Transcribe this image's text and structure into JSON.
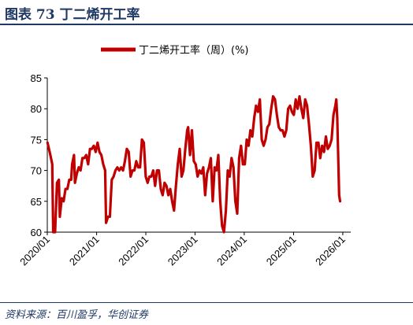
{
  "figure": {
    "title": "图表 73  丁二烯开工率",
    "source": "资料来源：百川盈孚，华创证券"
  },
  "colors": {
    "series": "#c00000",
    "frame": "#1f3864"
  },
  "chart_data": {
    "type": "line",
    "title": "",
    "xlabel": "",
    "ylabel": "",
    "ylim": [
      60,
      85
    ],
    "yticks": [
      60,
      65,
      70,
      75,
      80,
      85
    ],
    "xticks": [
      "2020/01",
      "2021/01",
      "2022/01",
      "2023/01",
      "2024/01",
      "2025/01",
      "2026/01"
    ],
    "xrange": [
      "2020/01",
      "2026/03"
    ],
    "grid": false,
    "legend": "top-center",
    "series": [
      {
        "name": "丁二烯开工率（周）(%)",
        "points": [
          [
            "2020-01-03",
            74.5
          ],
          [
            "2020-01-24",
            72.5
          ],
          [
            "2020-02-07",
            71.0
          ],
          [
            "2020-02-14",
            60.0
          ],
          [
            "2020-02-28",
            60.0
          ],
          [
            "2020-03-13",
            68.0
          ],
          [
            "2020-03-27",
            68.5
          ],
          [
            "2020-04-03",
            62.5
          ],
          [
            "2020-04-17",
            65.5
          ],
          [
            "2020-05-01",
            65.0
          ],
          [
            "2020-05-15",
            67.0
          ],
          [
            "2020-05-29",
            67.0
          ],
          [
            "2020-06-12",
            68.5
          ],
          [
            "2020-06-26",
            68.5
          ],
          [
            "2020-07-03",
            71.0
          ],
          [
            "2020-07-17",
            72.5
          ],
          [
            "2020-07-24",
            68.0
          ],
          [
            "2020-08-07",
            69.5
          ],
          [
            "2020-08-21",
            70.5
          ],
          [
            "2020-09-04",
            70.0
          ],
          [
            "2020-09-18",
            72.0
          ],
          [
            "2020-10-02",
            72.0
          ],
          [
            "2020-10-16",
            72.5
          ],
          [
            "2020-10-30",
            71.0
          ],
          [
            "2020-11-13",
            73.5
          ],
          [
            "2020-11-27",
            73.5
          ],
          [
            "2020-12-11",
            74.0
          ],
          [
            "2020-12-25",
            73.0
          ],
          [
            "2021-01-08",
            74.5
          ],
          [
            "2021-01-22",
            73.0
          ],
          [
            "2021-02-05",
            72.5
          ],
          [
            "2021-02-19",
            71.0
          ],
          [
            "2021-03-05",
            70.0
          ],
          [
            "2021-03-12",
            61.5
          ],
          [
            "2021-03-26",
            62.5
          ],
          [
            "2021-04-09",
            62.5
          ],
          [
            "2021-04-23",
            68.5
          ],
          [
            "2021-05-07",
            69.0
          ],
          [
            "2021-05-21",
            70.0
          ],
          [
            "2021-06-04",
            70.5
          ],
          [
            "2021-06-18",
            70.0
          ],
          [
            "2021-07-02",
            70.5
          ],
          [
            "2021-07-16",
            70.0
          ],
          [
            "2021-07-30",
            71.5
          ],
          [
            "2021-08-13",
            73.5
          ],
          [
            "2021-08-27",
            73.0
          ],
          [
            "2021-09-10",
            69.0
          ],
          [
            "2021-09-24",
            70.0
          ],
          [
            "2021-10-08",
            70.0
          ],
          [
            "2021-10-22",
            71.5
          ],
          [
            "2021-11-05",
            70.5
          ],
          [
            "2021-11-19",
            70.5
          ],
          [
            "2021-12-03",
            75.0
          ],
          [
            "2021-12-17",
            74.5
          ],
          [
            "2021-12-31",
            69.0
          ],
          [
            "2022-01-14",
            68.0
          ],
          [
            "2022-01-28",
            69.0
          ],
          [
            "2022-02-11",
            69.0
          ],
          [
            "2022-02-25",
            70.0
          ],
          [
            "2022-03-11",
            67.5
          ],
          [
            "2022-03-25",
            70.0
          ],
          [
            "2022-04-08",
            70.0
          ],
          [
            "2022-04-22",
            67.0
          ],
          [
            "2022-05-06",
            66.0
          ],
          [
            "2022-05-20",
            68.0
          ],
          [
            "2022-06-03",
            67.5
          ],
          [
            "2022-06-17",
            66.0
          ],
          [
            "2022-07-01",
            67.0
          ],
          [
            "2022-07-15",
            65.0
          ],
          [
            "2022-07-29",
            63.5
          ],
          [
            "2022-08-12",
            67.5
          ],
          [
            "2022-08-26",
            71.0
          ],
          [
            "2022-09-09",
            73.5
          ],
          [
            "2022-09-23",
            69.0
          ],
          [
            "2022-10-07",
            70.0
          ],
          [
            "2022-10-21",
            73.5
          ],
          [
            "2022-11-04",
            76.5
          ],
          [
            "2022-11-11",
            77.0
          ],
          [
            "2022-11-25",
            72.5
          ],
          [
            "2022-12-09",
            76.5
          ],
          [
            "2022-12-23",
            71.5
          ],
          [
            "2023-01-06",
            71.0
          ],
          [
            "2023-01-20",
            69.0
          ],
          [
            "2023-02-03",
            70.0
          ],
          [
            "2023-02-17",
            69.5
          ],
          [
            "2023-03-03",
            70.5
          ],
          [
            "2023-03-17",
            66.0
          ],
          [
            "2023-03-31",
            69.5
          ],
          [
            "2023-04-14",
            70.5
          ],
          [
            "2023-04-28",
            72.0
          ],
          [
            "2023-05-12",
            65.0
          ],
          [
            "2023-05-26",
            70.5
          ],
          [
            "2023-06-09",
            70.0
          ],
          [
            "2023-06-23",
            72.5
          ],
          [
            "2023-07-07",
            65.0
          ],
          [
            "2023-07-21",
            61.0
          ],
          [
            "2023-08-04",
            60.0
          ],
          [
            "2023-08-18",
            63.5
          ],
          [
            "2023-09-01",
            70.0
          ],
          [
            "2023-09-15",
            69.0
          ],
          [
            "2023-09-29",
            72.0
          ],
          [
            "2023-10-13",
            70.5
          ],
          [
            "2023-10-27",
            65.0
          ],
          [
            "2023-11-10",
            63.0
          ],
          [
            "2023-11-24",
            72.0
          ],
          [
            "2023-12-08",
            74.0
          ],
          [
            "2023-12-22",
            71.0
          ],
          [
            "2024-01-05",
            71.0
          ],
          [
            "2024-01-19",
            75.0
          ],
          [
            "2024-02-02",
            74.0
          ],
          [
            "2024-02-16",
            76.5
          ],
          [
            "2024-03-01",
            75.5
          ],
          [
            "2024-03-15",
            78.5
          ],
          [
            "2024-03-29",
            80.5
          ],
          [
            "2024-04-12",
            79.5
          ],
          [
            "2024-04-26",
            81.5
          ],
          [
            "2024-05-10",
            75.0
          ],
          [
            "2024-05-24",
            74.0
          ],
          [
            "2024-06-07",
            75.0
          ],
          [
            "2024-06-21",
            77.0
          ],
          [
            "2024-07-05",
            77.5
          ],
          [
            "2024-07-19",
            80.0
          ],
          [
            "2024-08-02",
            82.0
          ],
          [
            "2024-08-16",
            81.5
          ],
          [
            "2024-08-30",
            79.0
          ],
          [
            "2024-09-13",
            77.0
          ],
          [
            "2024-09-27",
            76.5
          ],
          [
            "2024-10-11",
            76.5
          ],
          [
            "2024-10-25",
            75.5
          ],
          [
            "2024-11-08",
            76.5
          ],
          [
            "2024-11-22",
            80.0
          ],
          [
            "2024-12-06",
            80.5
          ],
          [
            "2024-12-20",
            79.5
          ],
          [
            "2025-01-03",
            79.0
          ],
          [
            "2025-01-17",
            81.5
          ],
          [
            "2025-01-31",
            80.0
          ],
          [
            "2025-02-14",
            82.0
          ],
          [
            "2025-02-28",
            80.0
          ],
          [
            "2025-03-14",
            78.5
          ],
          [
            "2025-03-28",
            81.5
          ],
          [
            "2025-04-11",
            80.5
          ],
          [
            "2025-04-25",
            77.5
          ],
          [
            "2025-05-09",
            74.0
          ],
          [
            "2025-05-23",
            69.0
          ],
          [
            "2025-06-06",
            70.0
          ],
          [
            "2025-06-20",
            74.5
          ],
          [
            "2025-07-04",
            74.5
          ],
          [
            "2025-07-18",
            72.0
          ],
          [
            "2025-08-01",
            74.0
          ],
          [
            "2025-08-15",
            73.0
          ],
          [
            "2025-08-29",
            75.5
          ],
          [
            "2025-09-12",
            73.5
          ],
          [
            "2025-09-26",
            74.0
          ],
          [
            "2025-10-10",
            75.0
          ],
          [
            "2025-10-24",
            79.0
          ],
          [
            "2025-11-07",
            80.5
          ],
          [
            "2025-11-14",
            81.5
          ],
          [
            "2025-11-21",
            78.5
          ],
          [
            "2025-12-05",
            66.0
          ],
          [
            "2025-12-12",
            65.0
          ]
        ]
      }
    ]
  }
}
